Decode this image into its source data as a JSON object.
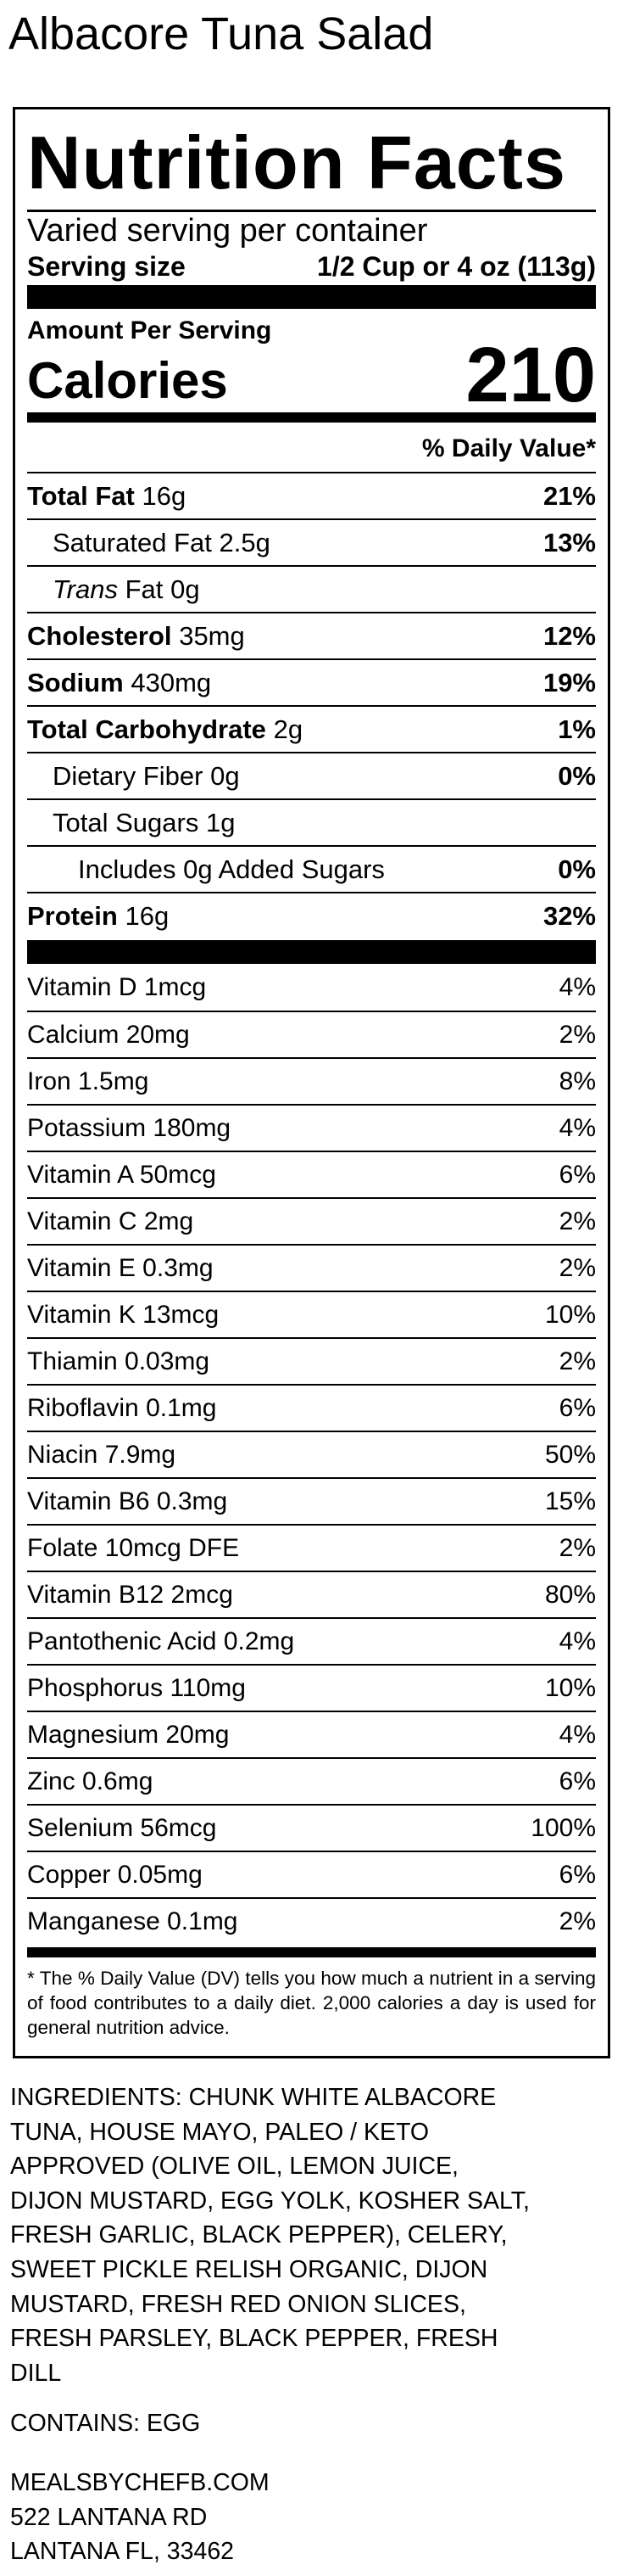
{
  "title": "Albacore Tuna Salad",
  "label": {
    "heading": "Nutrition Facts",
    "servings": "Varied serving per container",
    "serving_size_label": "Serving size",
    "serving_size": "1/2 Cup or 4 oz (113g)",
    "amount_per_serving": "Amount Per Serving",
    "calories_label": "Calories",
    "calories": 210,
    "daily_value_header": "% Daily Value*",
    "nutrients": [
      {
        "name": "Total Fat",
        "amount": "16g",
        "dv": "21%",
        "level": 0
      },
      {
        "name": "Saturated Fat",
        "amount": "2.5g",
        "dv": "13%",
        "level": 1
      },
      {
        "italic": "Trans",
        "name": "Fat",
        "amount": "0g",
        "level": 1
      },
      {
        "name": "Cholesterol",
        "amount": "35mg",
        "dv": "12%",
        "level": 0
      },
      {
        "name": "Sodium",
        "amount": "430mg",
        "dv": "19%",
        "level": 0
      },
      {
        "name": "Total Carbohydrate",
        "amount": "2g",
        "dv": "1%",
        "level": 0
      },
      {
        "name": "Dietary Fiber",
        "amount": "0g",
        "dv": "0%",
        "level": 1
      },
      {
        "name": "Total Sugars",
        "amount": "1g",
        "level": 1
      },
      {
        "name": "Includes 0g Added Sugars",
        "dv": "0%",
        "level": 2
      },
      {
        "name": "Protein",
        "amount": "16g",
        "dv": "32%",
        "level": 0
      }
    ],
    "vitamins": [
      {
        "name": "Vitamin D 1mcg",
        "dv": "4%"
      },
      {
        "name": "Calcium 20mg",
        "dv": "2%"
      },
      {
        "name": "Iron 1.5mg",
        "dv": "8%"
      },
      {
        "name": "Potassium 180mg",
        "dv": "4%"
      },
      {
        "name": "Vitamin A 50mcg",
        "dv": "6%"
      },
      {
        "name": "Vitamin C 2mg",
        "dv": "2%"
      },
      {
        "name": "Vitamin E 0.3mg",
        "dv": "2%"
      },
      {
        "name": "Vitamin K 13mcg",
        "dv": "10%"
      },
      {
        "name": "Thiamin 0.03mg",
        "dv": "2%"
      },
      {
        "name": "Riboflavin 0.1mg",
        "dv": "6%"
      },
      {
        "name": "Niacin 7.9mg",
        "dv": "50%"
      },
      {
        "name": "Vitamin B6 0.3mg",
        "dv": "15%"
      },
      {
        "name": "Folate 10mcg DFE",
        "dv": "2%"
      },
      {
        "name": "Vitamin B12 2mcg",
        "dv": "80%"
      },
      {
        "name": "Pantothenic Acid 0.2mg",
        "dv": "4%"
      },
      {
        "name": "Phosphorus 110mg",
        "dv": "10%"
      },
      {
        "name": "Magnesium 20mg",
        "dv": "4%"
      },
      {
        "name": "Zinc 0.6mg",
        "dv": "6%"
      },
      {
        "name": "Selenium 56mcg",
        "dv": "100%"
      },
      {
        "name": "Copper 0.05mg",
        "dv": "6%"
      },
      {
        "name": "Manganese 0.1mg",
        "dv": "2%"
      }
    ],
    "footnote": "* The % Daily Value (DV) tells you how much a nutrient in a serving of food contributes to a daily diet. 2,000 calories a day is used for general nutrition advice."
  },
  "ingredients": [
    "INGREDIENTS: CHUNK WHITE ALBACORE",
    "TUNA, HOUSE MAYO, PALEO / KETO",
    "APPROVED (OLIVE OIL, LEMON JUICE,",
    "DIJON MUSTARD, EGG YOLK, KOSHER SALT,",
    "FRESH GARLIC, BLACK PEPPER), CELERY,",
    "SWEET PICKLE RELISH ORGANIC, DIJON",
    "MUSTARD, FRESH RED ONION SLICES,",
    "FRESH PARSLEY, BLACK PEPPER, FRESH",
    "DILL"
  ],
  "contains": "CONTAINS: EGG",
  "address": [
    "MEALSBYCHEFB.COM",
    "522 LANTANA RD",
    "LANTANA FL, 33462"
  ]
}
